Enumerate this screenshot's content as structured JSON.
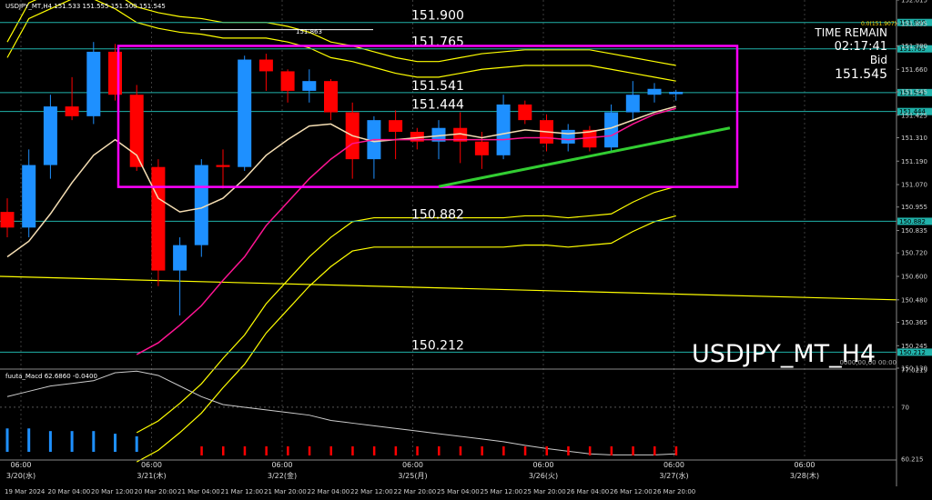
{
  "chart_info": {
    "header": "USDJPY_MT,H4  151.533 151.555 151.500 151.545",
    "symbol_label": "USDJPY_MT_H4",
    "time_remain_label": "TIME REMAIN",
    "time_remain_value": "02:17:41",
    "bid_label": "Bid",
    "bid_value": "151.545",
    "fib_label": "0.0(151.907)",
    "macd_label": "fuuta_Macd 62.6860  -0.0400",
    "macd_right_label": "0000,00,00 00:00",
    "high_mark": "151.863"
  },
  "colors": {
    "bull": "#1e90ff",
    "bear": "#ff0000",
    "level_line": "#20b2aa",
    "box": "#ff00ff",
    "trend": "#32cd32",
    "ma_fast": "#f5deb3",
    "ma_mid": "#ff1493",
    "envelope": "#ffff00"
  },
  "chart_data": {
    "type": "candlestick",
    "symbol": "USDJPY_MT",
    "timeframe": "H4",
    "ylim": [
      150.13,
      152.015
    ],
    "y_ticks": [
      "152.015",
      "151.895",
      "151.780",
      "151.660",
      "151.545",
      "151.425",
      "151.310",
      "151.190",
      "151.070",
      "150.955",
      "150.835",
      "150.720",
      "150.600",
      "150.480",
      "150.365",
      "150.245",
      "150.130"
    ],
    "right_labels": [
      "151.900",
      "151.765",
      "151.541",
      "151.444",
      "150.882",
      "150.212"
    ],
    "macd_ticks": [
      "77.0219",
      "70",
      "60.215"
    ],
    "x_tick_labels": [
      "19 Mar 2024",
      "20 Mar 04:00",
      "20 Mar 12:00",
      "20 Mar 20:00",
      "21 Mar 04:00",
      "21 Mar 12:00",
      "21 Mar 20:00",
      "22 Mar 04:00",
      "22 Mar 12:00",
      "22 Mar 20:00",
      "25 Mar 04:00",
      "25 Mar 12:00",
      "25 Mar 20:00",
      "26 Mar 04:00",
      "26 Mar 12:00",
      "26 Mar 20:00"
    ],
    "session_marks": [
      {
        "time": "06:00",
        "date": "3/20(水)"
      },
      {
        "time": "06:00",
        "date": "3/21(木)"
      },
      {
        "time": "06:00",
        "date": "3/22(金)"
      },
      {
        "time": "06:00",
        "date": "3/25(月)"
      },
      {
        "time": "06:00",
        "date": "3/26(火)"
      },
      {
        "time": "06:00",
        "date": "3/27(水)"
      },
      {
        "time": "06:00",
        "date": "3/28(木)"
      }
    ],
    "levels": [
      {
        "label": "151.900",
        "price": 151.9
      },
      {
        "label": "151.765",
        "price": 151.765
      },
      {
        "label": "151.541",
        "price": 151.541
      },
      {
        "label": "151.444",
        "price": 151.444
      },
      {
        "label": "150.882",
        "price": 150.882
      },
      {
        "label": "150.212",
        "price": 150.212
      }
    ],
    "candles": [
      {
        "o": 150.93,
        "h": 151.0,
        "l": 150.8,
        "c": 150.85
      },
      {
        "o": 150.85,
        "h": 151.25,
        "l": 150.8,
        "c": 151.17
      },
      {
        "o": 151.17,
        "h": 151.53,
        "l": 151.1,
        "c": 151.47
      },
      {
        "o": 151.47,
        "h": 151.62,
        "l": 151.4,
        "c": 151.42
      },
      {
        "o": 151.42,
        "h": 151.8,
        "l": 151.38,
        "c": 151.75
      },
      {
        "o": 151.75,
        "h": 151.79,
        "l": 151.5,
        "c": 151.53
      },
      {
        "o": 151.53,
        "h": 151.58,
        "l": 151.14,
        "c": 151.16
      },
      {
        "o": 151.16,
        "h": 151.2,
        "l": 150.55,
        "c": 150.63
      },
      {
        "o": 150.63,
        "h": 150.8,
        "l": 150.4,
        "c": 150.76
      },
      {
        "o": 150.76,
        "h": 151.2,
        "l": 150.7,
        "c": 151.17
      },
      {
        "o": 151.17,
        "h": 151.25,
        "l": 151.05,
        "c": 151.16
      },
      {
        "o": 151.16,
        "h": 151.73,
        "l": 151.14,
        "c": 151.71
      },
      {
        "o": 151.71,
        "h": 151.74,
        "l": 151.55,
        "c": 151.65
      },
      {
        "o": 151.65,
        "h": 151.66,
        "l": 151.49,
        "c": 151.55
      },
      {
        "o": 151.55,
        "h": 151.66,
        "l": 151.49,
        "c": 151.6
      },
      {
        "o": 151.6,
        "h": 151.61,
        "l": 151.4,
        "c": 151.44
      },
      {
        "o": 151.44,
        "h": 151.49,
        "l": 151.1,
        "c": 151.2
      },
      {
        "o": 151.2,
        "h": 151.42,
        "l": 151.1,
        "c": 151.4
      },
      {
        "o": 151.4,
        "h": 151.45,
        "l": 151.2,
        "c": 151.34
      },
      {
        "o": 151.34,
        "h": 151.36,
        "l": 151.25,
        "c": 151.29
      },
      {
        "o": 151.29,
        "h": 151.4,
        "l": 151.2,
        "c": 151.36
      },
      {
        "o": 151.36,
        "h": 151.44,
        "l": 151.18,
        "c": 151.29
      },
      {
        "o": 151.29,
        "h": 151.34,
        "l": 151.15,
        "c": 151.22
      },
      {
        "o": 151.22,
        "h": 151.53,
        "l": 151.2,
        "c": 151.48
      },
      {
        "o": 151.48,
        "h": 151.5,
        "l": 151.38,
        "c": 151.4
      },
      {
        "o": 151.4,
        "h": 151.43,
        "l": 151.24,
        "c": 151.28
      },
      {
        "o": 151.28,
        "h": 151.38,
        "l": 151.24,
        "c": 151.35
      },
      {
        "o": 151.35,
        "h": 151.37,
        "l": 151.24,
        "c": 151.26
      },
      {
        "o": 151.26,
        "h": 151.48,
        "l": 151.24,
        "c": 151.44
      },
      {
        "o": 151.44,
        "h": 151.6,
        "l": 151.4,
        "c": 151.53
      },
      {
        "o": 151.53,
        "h": 151.59,
        "l": 151.49,
        "c": 151.56
      },
      {
        "o": 151.533,
        "h": 151.555,
        "l": 151.5,
        "c": 151.545
      }
    ],
    "ma_fast": [
      150.7,
      150.78,
      150.92,
      151.08,
      151.22,
      151.3,
      151.22,
      151.0,
      150.93,
      150.95,
      151.0,
      151.1,
      151.22,
      151.3,
      151.37,
      151.38,
      151.32,
      151.29,
      151.3,
      151.31,
      151.32,
      151.33,
      151.31,
      151.33,
      151.35,
      151.34,
      151.33,
      151.34,
      151.36,
      151.4,
      151.44,
      151.47
    ],
    "ma_mid": [
      null,
      null,
      null,
      null,
      null,
      null,
      150.2,
      150.26,
      150.35,
      150.45,
      150.58,
      150.7,
      150.86,
      150.98,
      151.1,
      151.2,
      151.28,
      151.3,
      151.3,
      151.3,
      151.3,
      151.3,
      151.3,
      151.3,
      151.31,
      151.31,
      151.3,
      151.31,
      151.32,
      151.38,
      151.43,
      151.46
    ],
    "envelope_top": [
      151.8,
      152.0,
      152.05,
      152.1,
      152.1,
      152.05,
      151.98,
      151.95,
      151.93,
      151.92,
      151.9,
      151.9,
      151.9,
      151.88,
      151.85,
      151.8,
      151.78,
      151.75,
      151.72,
      151.7,
      151.7,
      151.72,
      151.74,
      151.75,
      151.76,
      151.76,
      151.76,
      151.76,
      151.74,
      151.72,
      151.7,
      151.68
    ],
    "trend_line": [
      {
        "i": 20,
        "p": 151.06
      },
      {
        "i": 33.5,
        "p": 151.36
      }
    ],
    "macd_signal": [
      72,
      73,
      74,
      74.5,
      75,
      76.5,
      76.8,
      76,
      74,
      72,
      70.5,
      70,
      69.5,
      69,
      68.5,
      67.5,
      67,
      66.5,
      66,
      65.5,
      65,
      64.5,
      64,
      63.5,
      62.8,
      62.2,
      61.7,
      61.2,
      61,
      61,
      61,
      61.2
    ],
    "macd_hist": [
      66,
      66,
      65.5,
      65.5,
      65.5,
      65,
      64.5,
      null,
      null,
      -61.6,
      -61.6,
      -61.6,
      -61.4,
      -61.4,
      -61.2,
      -61.2,
      -61.2,
      -61,
      -61,
      -61,
      -61,
      -61,
      -61,
      -61,
      -60.9,
      -60.9,
      -60.9,
      -60.8,
      -60.8,
      -60.8,
      -60.7,
      -60.7
    ]
  }
}
